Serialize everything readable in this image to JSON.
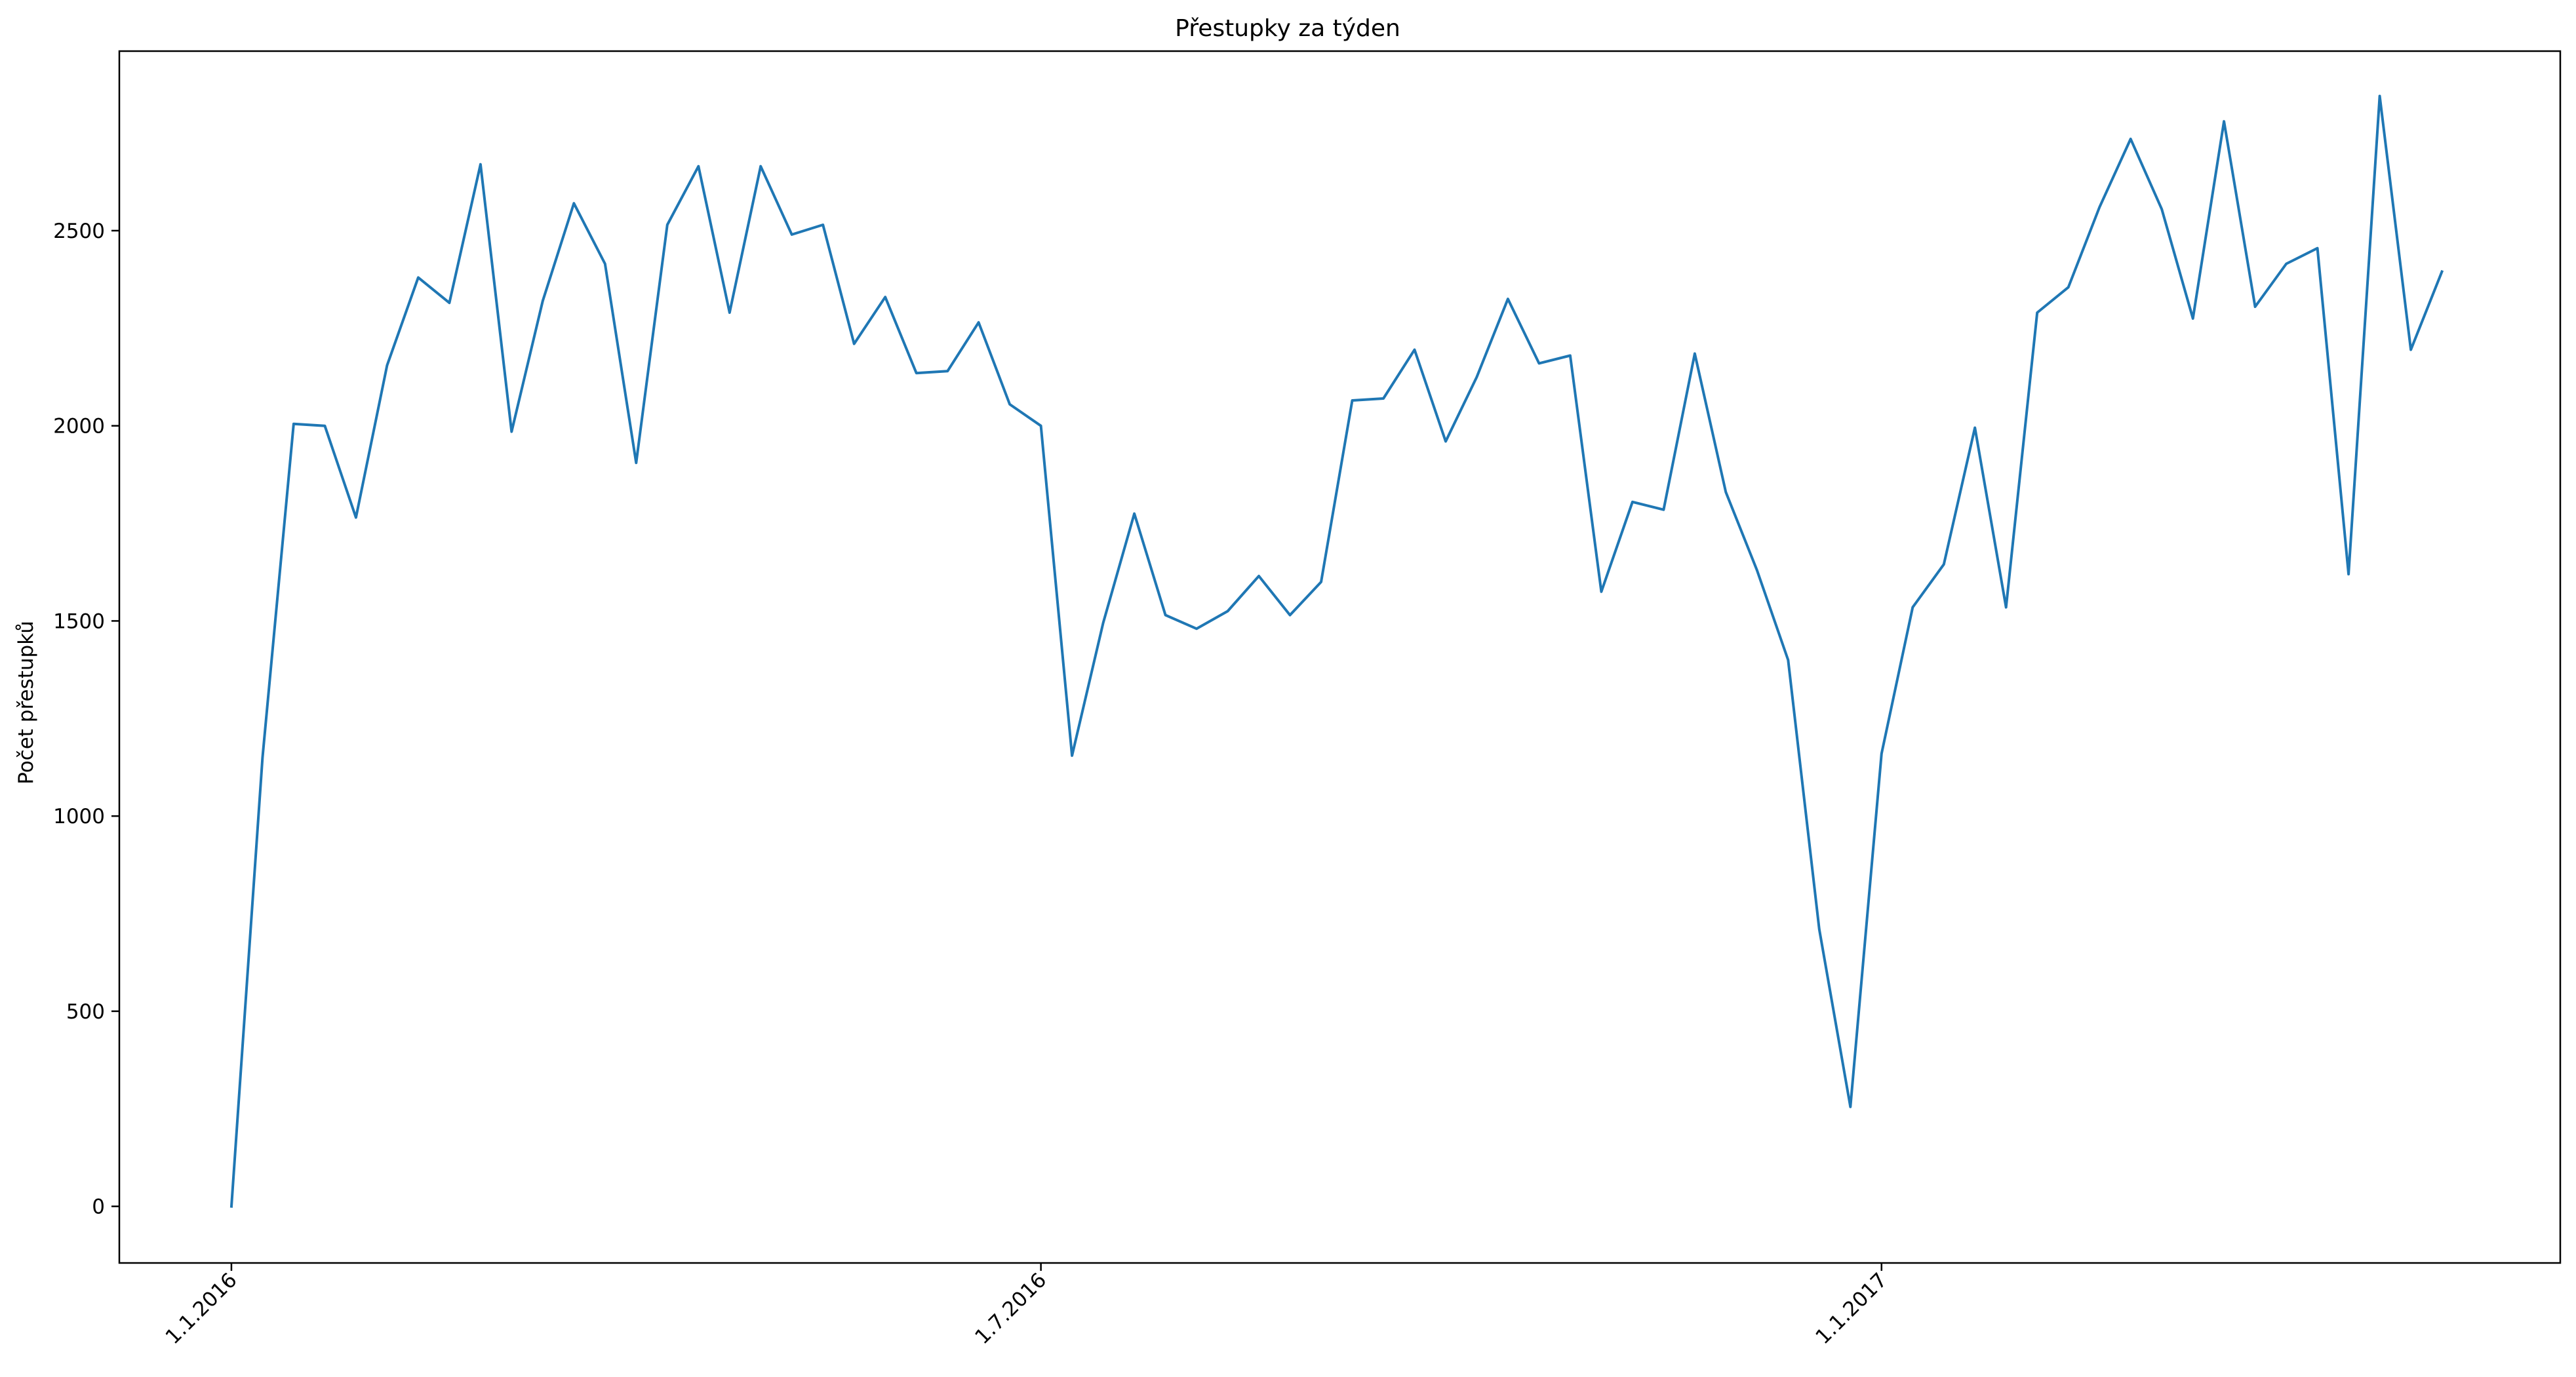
{
  "chart_data": {
    "type": "line",
    "title": "Přestupky za týden",
    "xlabel": "",
    "ylabel": "Počet přestupků",
    "ylim": [
      -145,
      2960
    ],
    "xlim": [
      -3.6,
      74.8
    ],
    "y_ticks": [
      0,
      500,
      1000,
      1500,
      2000,
      2500
    ],
    "x_ticks": [
      {
        "label": "1.1.2016",
        "index": 0
      },
      {
        "label": "1.7.2016",
        "index": 26
      },
      {
        "label": "1.1.2017",
        "index": 53
      }
    ],
    "grid": false,
    "series": [
      {
        "name": "Přestupky",
        "color": "#1f77b4",
        "values": [
          0,
          1150,
          2005,
          2000,
          1765,
          2155,
          2380,
          2315,
          2670,
          1985,
          2320,
          2570,
          2415,
          1905,
          2515,
          2665,
          2290,
          2665,
          2490,
          2515,
          2210,
          2330,
          2135,
          2140,
          2265,
          2055,
          2000,
          1155,
          1495,
          1775,
          1515,
          1480,
          1525,
          1615,
          1515,
          1600,
          2065,
          2070,
          2195,
          1960,
          2125,
          2325,
          2160,
          2180,
          1575,
          1805,
          1785,
          2185,
          1830,
          1630,
          1400,
          710,
          255,
          1160,
          1535,
          1645,
          1995,
          1535,
          2290,
          2355,
          2560,
          2735,
          2555,
          2275,
          2780,
          2305,
          2415,
          2455,
          1620,
          2845,
          2195,
          2395
        ]
      }
    ]
  }
}
